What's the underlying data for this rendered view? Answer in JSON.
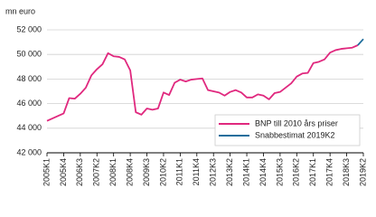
{
  "chart_data": {
    "type": "line",
    "y_label": "mn euro",
    "categories": [
      "2005K1",
      null,
      null,
      "2005K4",
      null,
      null,
      "2006K3",
      null,
      null,
      "2007K2",
      null,
      null,
      "2008K1",
      null,
      null,
      "2008K4",
      null,
      null,
      "2009K3",
      null,
      null,
      "2010K2",
      null,
      null,
      "2011K1",
      null,
      null,
      "2011K4",
      null,
      null,
      "2012K3",
      null,
      null,
      "2013K2",
      null,
      null,
      "2014K1",
      null,
      null,
      "2014K4",
      null,
      null,
      "2015K3",
      null,
      null,
      "2016K2",
      null,
      null,
      "2017K1",
      null,
      null,
      "2017K4",
      null,
      null,
      "2018K3",
      null,
      null,
      "2019K2"
    ],
    "series": [
      {
        "name": "BNP till 2010 års priser",
        "color": "#e0287e",
        "values": [
          44600,
          44800,
          45000,
          45200,
          46450,
          46400,
          46800,
          47300,
          48300,
          48800,
          49200,
          50100,
          49850,
          49800,
          49600,
          48700,
          45300,
          45100,
          45600,
          45500,
          45600,
          46900,
          46700,
          47700,
          47950,
          47800,
          47950,
          48000,
          48050,
          47100,
          47000,
          46900,
          46650,
          46950,
          47100,
          46900,
          46500,
          46500,
          46750,
          46650,
          46350,
          46850,
          46950,
          47300,
          47650,
          48200,
          48450,
          48500,
          49300,
          49400,
          49600,
          50150,
          50350,
          50450,
          50500,
          50550,
          50750,
          null
        ]
      },
      {
        "name": "Snabbestimat 2019K2",
        "color": "#1f6e9c",
        "values": [
          null,
          null,
          null,
          null,
          null,
          null,
          null,
          null,
          null,
          null,
          null,
          null,
          null,
          null,
          null,
          null,
          null,
          null,
          null,
          null,
          null,
          null,
          null,
          null,
          null,
          null,
          null,
          null,
          null,
          null,
          null,
          null,
          null,
          null,
          null,
          null,
          null,
          null,
          null,
          null,
          null,
          null,
          null,
          null,
          null,
          null,
          null,
          null,
          null,
          null,
          null,
          null,
          null,
          null,
          null,
          null,
          50750,
          51250
        ]
      }
    ],
    "ylim": [
      42000,
      52000
    ],
    "yticks": [
      {
        "value": 42000,
        "label": "42 000"
      },
      {
        "value": 44000,
        "label": "44 000"
      },
      {
        "value": 46000,
        "label": "46 000"
      },
      {
        "value": 48000,
        "label": "48 000"
      },
      {
        "value": 50000,
        "label": "50 000"
      },
      {
        "value": 52000,
        "label": "52 000"
      }
    ],
    "grid": true,
    "legend": "lower right"
  }
}
